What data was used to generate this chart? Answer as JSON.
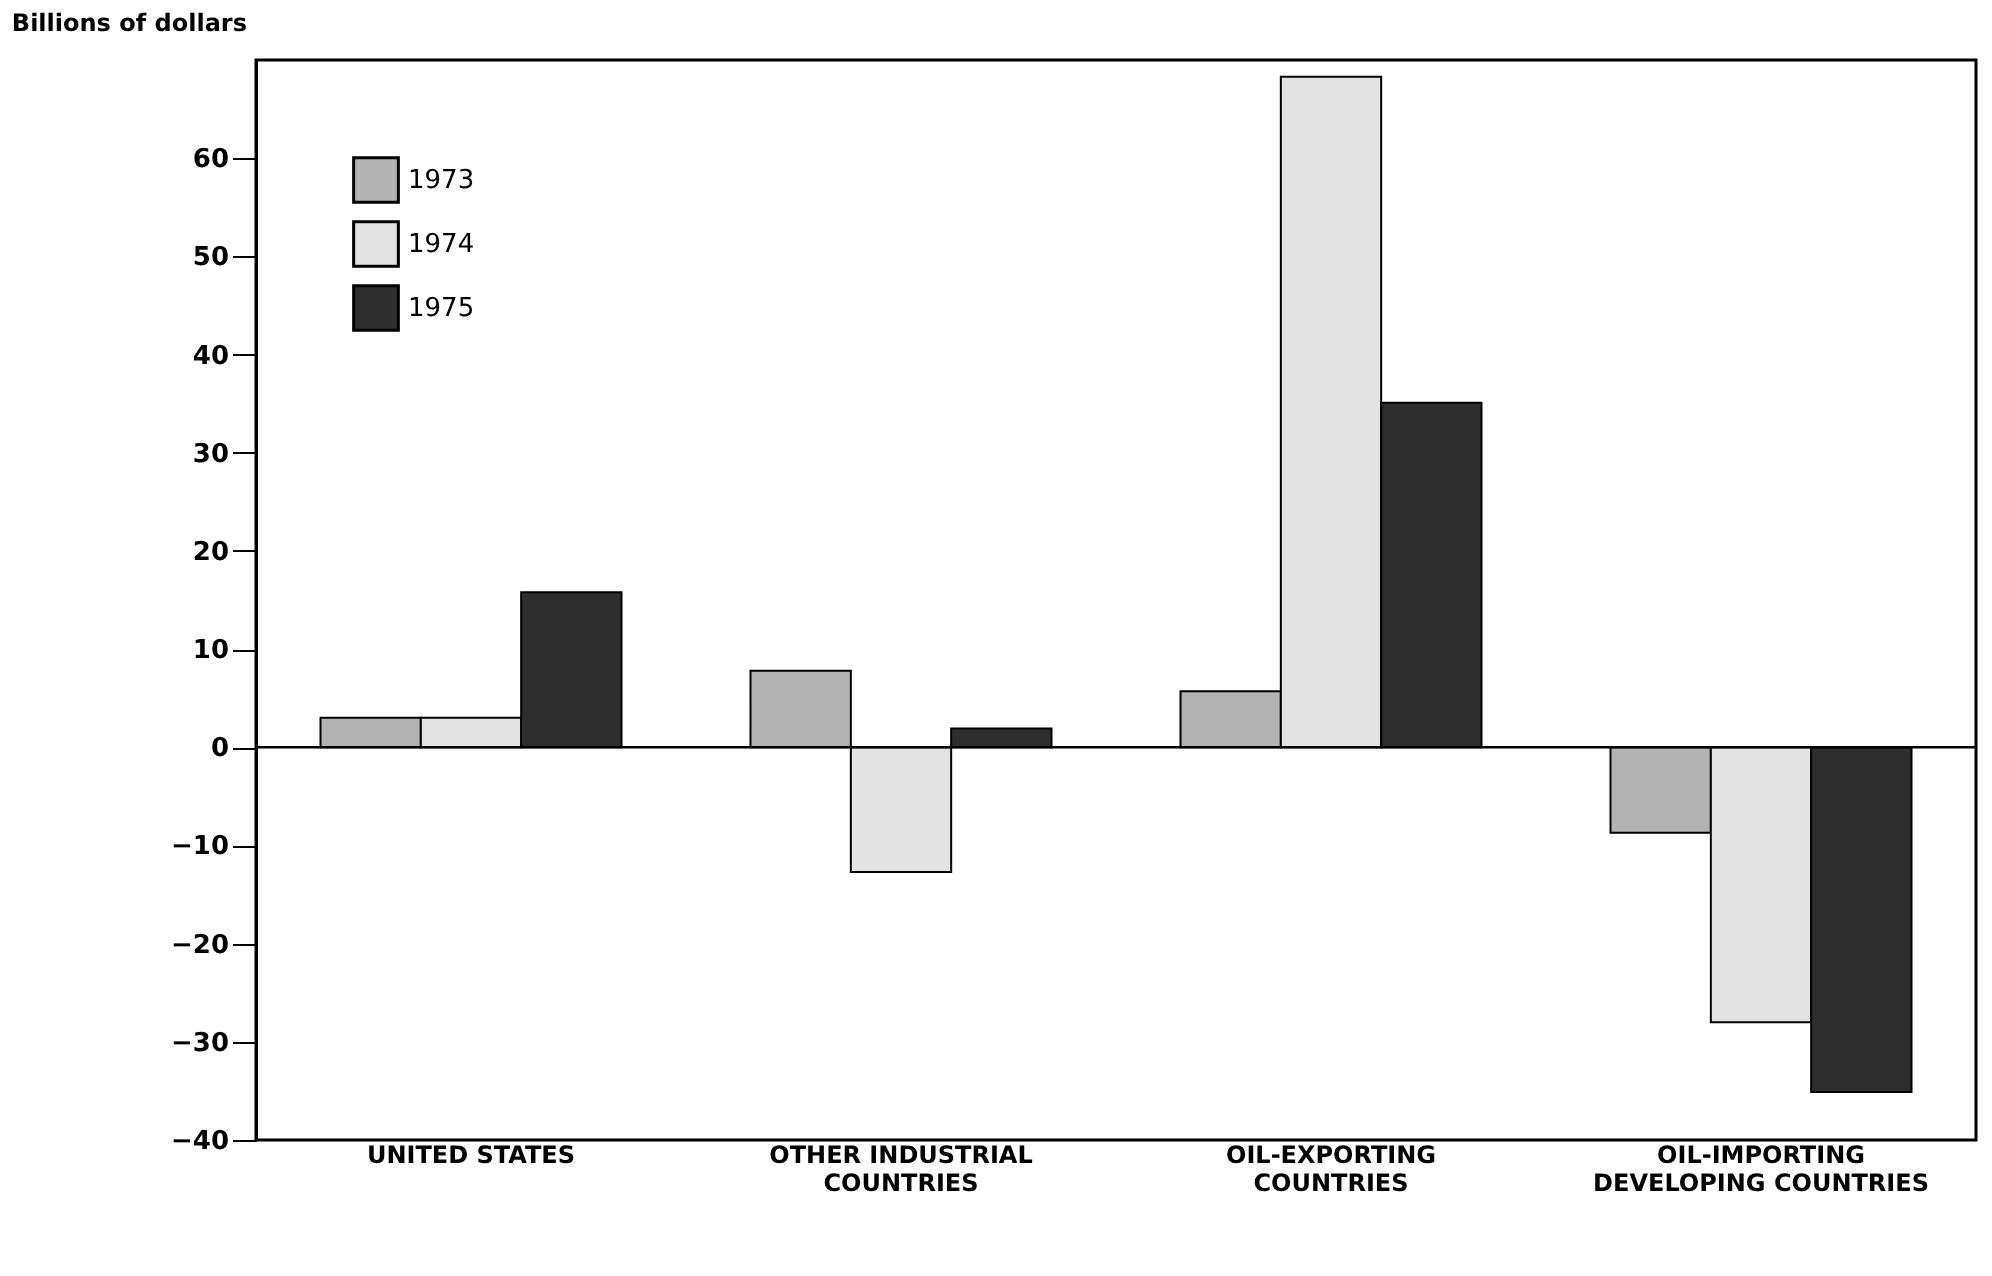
{
  "chart_data": {
    "type": "bar",
    "ylabel": "Billions of dollars",
    "categories": [
      "UNITED STATES",
      "OTHER INDUSTRIAL COUNTRIES",
      "OIL-EXPORTING COUNTRIES",
      "OIL-IMPORTING DEVELOPING COUNTRIES"
    ],
    "series": [
      {
        "name": "1973",
        "color": "#b3b3b3",
        "values": [
          3.0,
          7.8,
          5.7,
          -8.7
        ]
      },
      {
        "name": "1974",
        "color": "#e3e3e3",
        "values": [
          3.0,
          -12.7,
          68.3,
          -28
        ]
      },
      {
        "name": "1975",
        "color": "#2e2e2e",
        "values": [
          15.8,
          1.9,
          35.1,
          -35.1
        ]
      }
    ],
    "ylim": [
      -40,
      70
    ],
    "yticks": [
      -40,
      -30,
      -20,
      -10,
      0,
      10,
      20,
      30,
      40,
      50,
      60
    ],
    "ref_lines": [
      {
        "axis": "y",
        "value": 0
      }
    ],
    "grid": false,
    "legend": "top left"
  }
}
